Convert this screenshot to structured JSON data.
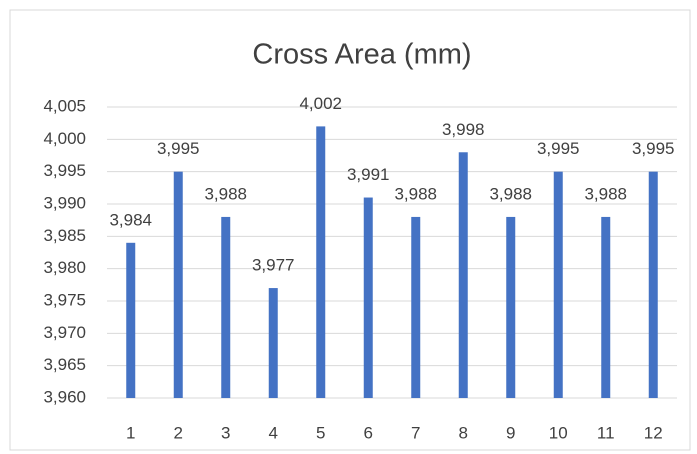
{
  "chart_data": {
    "type": "bar",
    "title": "Cross Area (mm)",
    "categories": [
      "1",
      "2",
      "3",
      "4",
      "5",
      "6",
      "7",
      "8",
      "9",
      "10",
      "11",
      "12"
    ],
    "values": [
      3984,
      3995,
      3988,
      3977,
      4002,
      3991,
      3988,
      3998,
      3988,
      3995,
      3988,
      3995
    ],
    "value_labels": [
      "3,984",
      "3,995",
      "3,988",
      "3,977",
      "4,002",
      "3,991",
      "3,988",
      "3,998",
      "3,988",
      "3,995",
      "3,988",
      "3,995"
    ],
    "color": "#4472c4",
    "ylim": [
      3960,
      4005
    ],
    "yticks": [
      {
        "value": 3960,
        "label": "3,960"
      },
      {
        "value": 3965,
        "label": "3,965"
      },
      {
        "value": 3970,
        "label": "3,970"
      },
      {
        "value": 3975,
        "label": "3,975"
      },
      {
        "value": 3980,
        "label": "3,980"
      },
      {
        "value": 3985,
        "label": "3,985"
      },
      {
        "value": 3990,
        "label": "3,990"
      },
      {
        "value": 3995,
        "label": "3,995"
      },
      {
        "value": 4000,
        "label": "4,000"
      },
      {
        "value": 4005,
        "label": "4,005"
      }
    ],
    "grid": true
  }
}
